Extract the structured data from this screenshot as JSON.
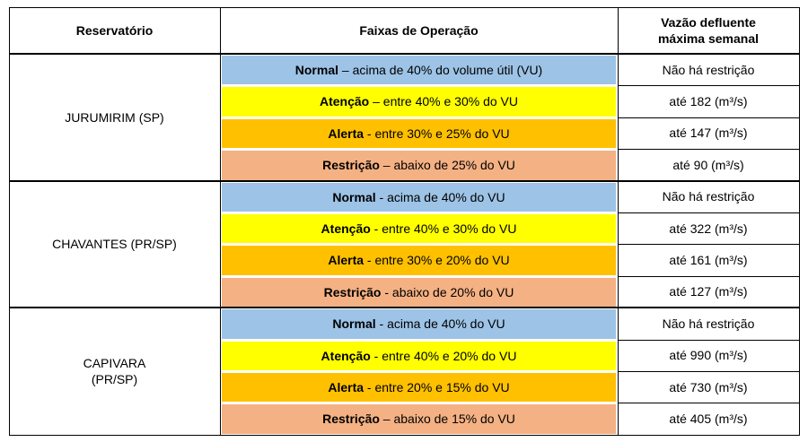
{
  "table": {
    "headers": [
      [
        "Reservatório"
      ],
      [
        "Faixas de Operação"
      ],
      [
        "Vazão defluente",
        "máxima semanal"
      ]
    ],
    "groups": [
      {
        "reservoir": [
          "JURUMIRIM (SP)"
        ],
        "rows": [
          {
            "level": "Normal",
            "desc": "– acima de 40% do volume útil (VU)",
            "flow": "Não há restrição",
            "color": "#9dc3e6"
          },
          {
            "level": "Atenção",
            "desc": "– entre 40% e 30% do VU",
            "flow": "até 182 (m³/s)",
            "color": "#ffff00"
          },
          {
            "level": "Alerta",
            "desc": "- entre 30% e 25% do VU",
            "flow": "até 147 (m³/s)",
            "color": "#ffc000"
          },
          {
            "level": "Restrição",
            "desc": "– abaixo de 25% do VU",
            "flow": "até 90 (m³/s)",
            "color": "#f4b183"
          }
        ]
      },
      {
        "reservoir": [
          "CHAVANTES (PR/SP)"
        ],
        "rows": [
          {
            "level": "Normal",
            "desc": "- acima de 40% do VU",
            "flow": "Não há restrição",
            "color": "#9dc3e6"
          },
          {
            "level": "Atenção",
            "desc": "- entre 40% e 30% do VU",
            "flow": "até 322 (m³/s)",
            "color": "#ffff00"
          },
          {
            "level": "Alerta",
            "desc": "- entre 30% e 20% do VU",
            "flow": "até 161 (m³/s)",
            "color": "#ffc000"
          },
          {
            "level": "Restrição",
            "desc": "- abaixo de 20% do VU",
            "flow": "até 127 (m³/s)",
            "color": "#f4b183"
          }
        ]
      },
      {
        "reservoir": [
          "CAPIVARA",
          "(PR/SP)"
        ],
        "rows": [
          {
            "level": "Normal",
            "desc": "- acima de 40% do VU",
            "flow": "Não há restrição",
            "color": "#9dc3e6"
          },
          {
            "level": "Atenção",
            "desc": "- entre 40% e 20% do VU",
            "flow": "até 990 (m³/s)",
            "color": "#ffff00"
          },
          {
            "level": "Alerta",
            "desc": "- entre 20% e 15% do VU",
            "flow": "até 730 (m³/s)",
            "color": "#ffc000"
          },
          {
            "level": "Restrição",
            "desc": "– abaixo de 15% do VU",
            "flow": "até 405 (m³/s)",
            "color": "#f4b183"
          }
        ]
      }
    ]
  }
}
